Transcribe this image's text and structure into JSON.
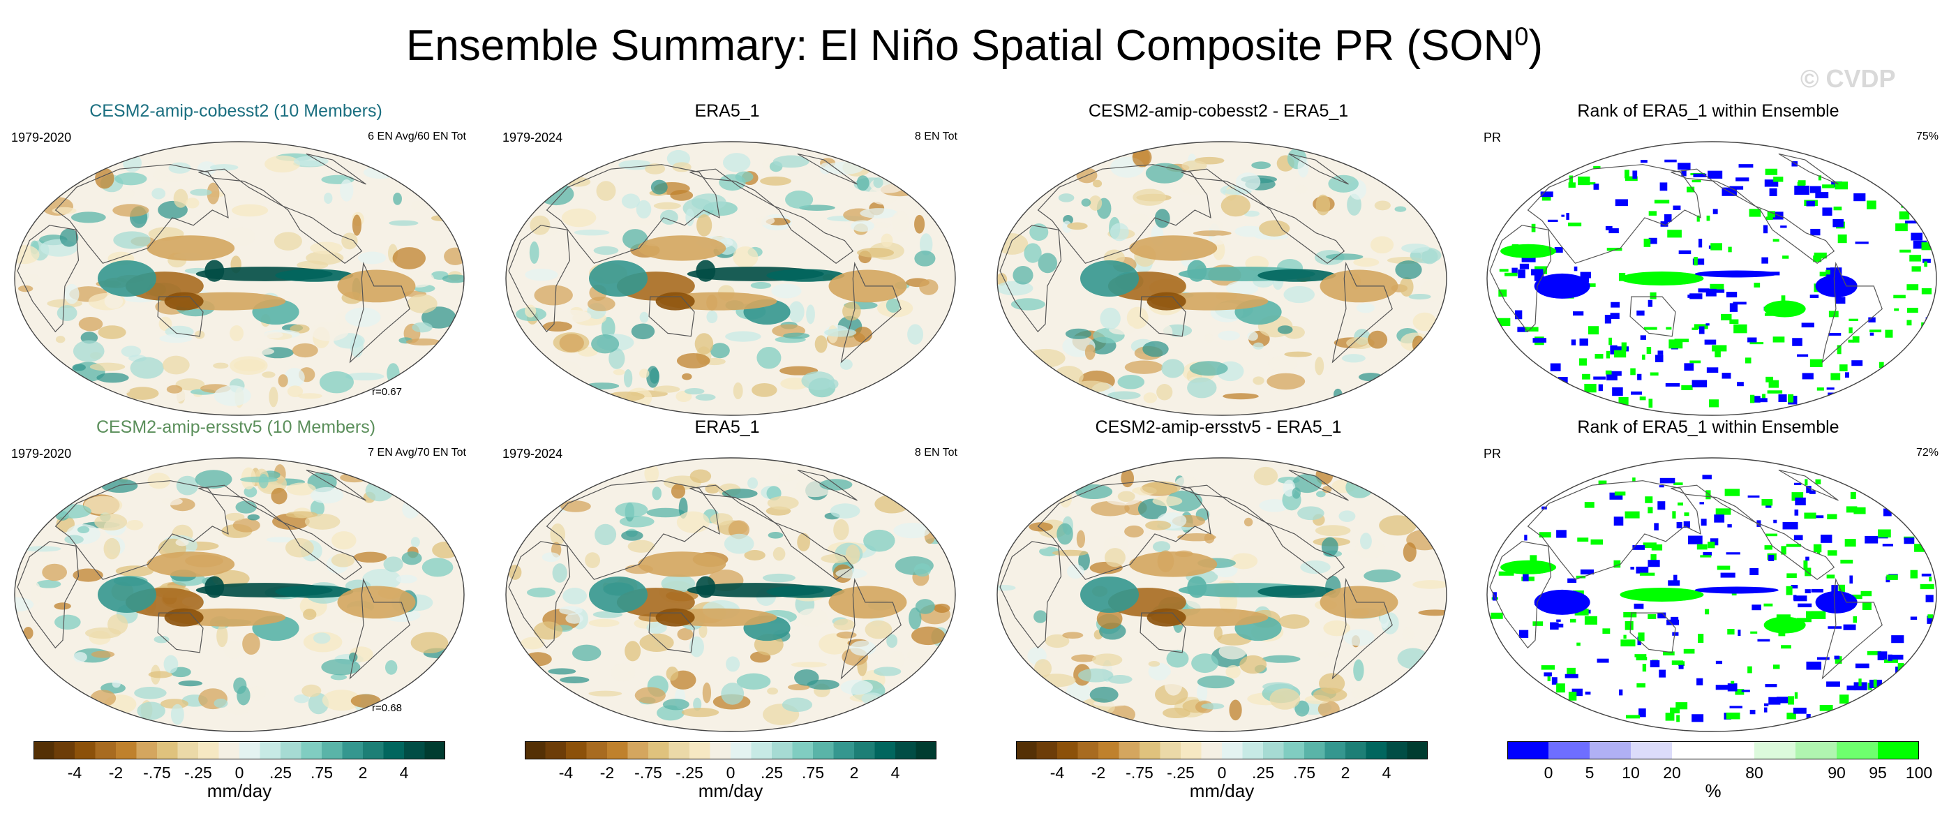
{
  "title": "Ensemble Summary: El Niño Spatial Composite PR (SON",
  "title_sup": "0",
  "title_close": ")",
  "watermark": "© CVDP",
  "rows": [
    {
      "panels": [
        {
          "title": "CESM2-amip-cobesst2 (10 Members)",
          "title_color": "#1b6f80",
          "left": "1979-2020",
          "right": "6 EN Avg/60 EN Tot",
          "corr": "r=0.67",
          "kind": "field",
          "variant": 0
        },
        {
          "title": "ERA5_1",
          "title_color": "#000000",
          "left": "1979-2024",
          "right": "8 EN Tot",
          "corr": "",
          "kind": "field",
          "variant": 1
        },
        {
          "title": "CESM2-amip-cobesst2 - ERA5_1",
          "title_color": "#000000",
          "left": "",
          "right": "",
          "corr": "",
          "kind": "diff",
          "variant": 2
        },
        {
          "title": "Rank of ERA5_1 within Ensemble",
          "title_color": "#000000",
          "left": "PR",
          "right": "75%",
          "corr": "",
          "kind": "rank",
          "variant": 3
        }
      ]
    },
    {
      "panels": [
        {
          "title": "CESM2-amip-ersstv5 (10 Members)",
          "title_color": "#5b8f5b",
          "left": "1979-2020",
          "right": "7 EN Avg/70 EN Tot",
          "corr": "r=0.68",
          "kind": "field",
          "variant": 4
        },
        {
          "title": "ERA5_1",
          "title_color": "#000000",
          "left": "1979-2024",
          "right": "8 EN Tot",
          "corr": "",
          "kind": "field",
          "variant": 5
        },
        {
          "title": "CESM2-amip-ersstv5 - ERA5_1",
          "title_color": "#000000",
          "left": "",
          "right": "",
          "corr": "",
          "kind": "diff",
          "variant": 6
        },
        {
          "title": "Rank of ERA5_1 within Ensemble",
          "title_color": "#000000",
          "left": "PR",
          "right": "72%",
          "corr": "",
          "kind": "rank",
          "variant": 7
        }
      ]
    }
  ],
  "colorbars": [
    {
      "colors": [
        "#543005",
        "#6d3d08",
        "#8c510a",
        "#a86b20",
        "#bf812d",
        "#d4a65f",
        "#dfc27d",
        "#ebd9a8",
        "#f6e8c3",
        "#f5f0e4",
        "#e4f3f1",
        "#c7eae5",
        "#a6dbd3",
        "#80cdc1",
        "#5ab4a8",
        "#35978f",
        "#1d7f76",
        "#01665e",
        "#014d45",
        "#003c30"
      ],
      "ticks": [
        "-4",
        "-2",
        "-.75",
        "-.25",
        "0",
        ".25",
        ".75",
        "2",
        "4"
      ],
      "tick_pos": [
        2,
        4,
        6,
        8,
        10,
        12,
        14,
        16,
        18
      ],
      "unit": "mm/day"
    },
    {
      "colors": [
        "#543005",
        "#6d3d08",
        "#8c510a",
        "#a86b20",
        "#bf812d",
        "#d4a65f",
        "#dfc27d",
        "#ebd9a8",
        "#f6e8c3",
        "#f5f0e4",
        "#e4f3f1",
        "#c7eae5",
        "#a6dbd3",
        "#80cdc1",
        "#5ab4a8",
        "#35978f",
        "#1d7f76",
        "#01665e",
        "#014d45",
        "#003c30"
      ],
      "ticks": [
        "-4",
        "-2",
        "-.75",
        "-.25",
        "0",
        ".25",
        ".75",
        "2",
        "4"
      ],
      "tick_pos": [
        2,
        4,
        6,
        8,
        10,
        12,
        14,
        16,
        18
      ],
      "unit": "mm/day"
    },
    {
      "colors": [
        "#543005",
        "#6d3d08",
        "#8c510a",
        "#a86b20",
        "#bf812d",
        "#d4a65f",
        "#dfc27d",
        "#ebd9a8",
        "#f6e8c3",
        "#f5f0e4",
        "#e4f3f1",
        "#c7eae5",
        "#a6dbd3",
        "#80cdc1",
        "#5ab4a8",
        "#35978f",
        "#1d7f76",
        "#01665e",
        "#014d45",
        "#003c30"
      ],
      "ticks": [
        "-4",
        "-2",
        "-.75",
        "-.25",
        "0",
        ".25",
        ".75",
        "2",
        "4"
      ],
      "tick_pos": [
        2,
        4,
        6,
        8,
        10,
        12,
        14,
        16,
        18
      ],
      "unit": "mm/day"
    },
    {
      "colors": [
        "#0000ff",
        "#6e6eff",
        "#b0b0f5",
        "#dcdcfa",
        "#ffffff",
        "#ffffff",
        "#dcfadc",
        "#b0f5b0",
        "#6eff6e",
        "#00ff00"
      ],
      "ticks": [
        "0",
        "5",
        "10",
        "20",
        "80",
        "90",
        "95",
        "100"
      ],
      "tick_pos": [
        1,
        2,
        3,
        4,
        6,
        8,
        9,
        10
      ],
      "unit": "%"
    }
  ],
  "chart_data": [
    {
      "type": "heatmap",
      "title": "CESM2-amip-cobesst2 (10 Members)",
      "period": "1979-2020",
      "note": "6 EN Avg/60 EN Tot",
      "corr": "r=0.67",
      "unit": "mm/day"
    },
    {
      "type": "heatmap",
      "title": "ERA5_1",
      "period": "1979-2024",
      "note": "8 EN Tot",
      "unit": "mm/day"
    },
    {
      "type": "heatmap",
      "title": "CESM2-amip-cobesst2 - ERA5_1",
      "unit": "mm/day"
    },
    {
      "type": "heatmap",
      "title": "Rank of ERA5_1 within Ensemble",
      "variable": "PR",
      "percent": "75%",
      "unit": "%"
    },
    {
      "type": "heatmap",
      "title": "CESM2-amip-ersstv5 (10 Members)",
      "period": "1979-2020",
      "note": "7 EN Avg/70 EN Tot",
      "corr": "r=0.68",
      "unit": "mm/day"
    },
    {
      "type": "heatmap",
      "title": "ERA5_1",
      "period": "1979-2024",
      "note": "8 EN Tot",
      "unit": "mm/day"
    },
    {
      "type": "heatmap",
      "title": "CESM2-amip-ersstv5 - ERA5_1",
      "unit": "mm/day"
    },
    {
      "type": "heatmap",
      "title": "Rank of ERA5_1 within Ensemble",
      "variable": "PR",
      "percent": "72%",
      "unit": "%"
    }
  ]
}
